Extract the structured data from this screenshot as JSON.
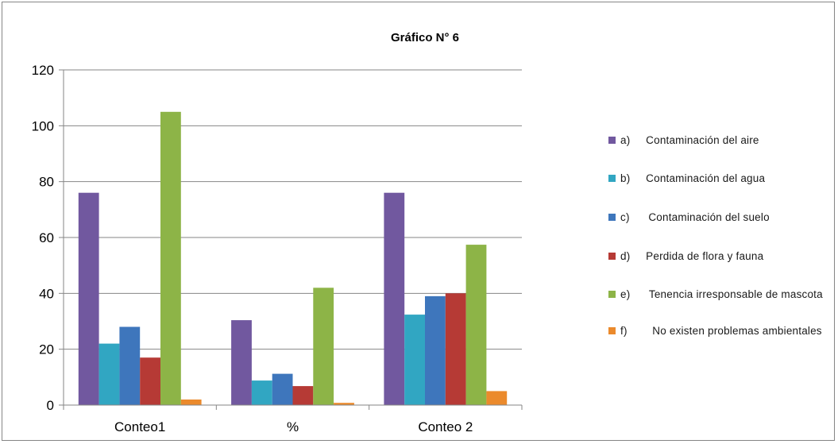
{
  "chart_data": {
    "type": "bar",
    "title": "Gráfico N° 6",
    "categories": [
      "Conteo1",
      "%",
      "Conteo 2"
    ],
    "ylim": [
      0,
      120
    ],
    "yticks": [
      0,
      20,
      40,
      60,
      80,
      100,
      120
    ],
    "grid": true,
    "legend_position": "right",
    "series": [
      {
        "name": "a)     Contaminación del aire",
        "color": "#71589f",
        "values": [
          76,
          30.4,
          76
        ]
      },
      {
        "name": "b)     Contaminación del agua",
        "color": "#31a6c2",
        "values": [
          22,
          8.8,
          32.4
        ]
      },
      {
        "name": "c)      Contaminación del suelo",
        "color": "#3e76bc",
        "values": [
          28,
          11.2,
          39
        ]
      },
      {
        "name": "d)     Perdida de flora y fauna",
        "color": "#b63a35",
        "values": [
          17,
          6.8,
          40
        ]
      },
      {
        "name": "e)      Tenencia irresponsable de mascota",
        "color": "#8db447",
        "values": [
          105,
          42,
          57.4
        ]
      },
      {
        "name": "f)        No existen problemas ambientales",
        "color": "#eb8a2c",
        "values": [
          2,
          0.8,
          5
        ]
      }
    ]
  }
}
